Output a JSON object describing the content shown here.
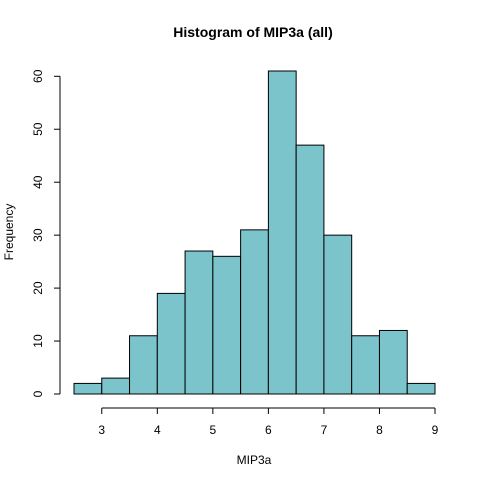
{
  "chart_data": {
    "type": "bar",
    "title": "Histogram of MIP3a (all)",
    "xlabel": "MIP3a",
    "ylabel": "Frequency",
    "bin_edges": [
      2.5,
      3.0,
      3.5,
      4.0,
      4.5,
      5.0,
      5.5,
      6.0,
      6.5,
      7.0,
      7.5,
      8.0,
      8.5,
      9.0
    ],
    "values": [
      2,
      3,
      11,
      19,
      27,
      26,
      31,
      61,
      47,
      30,
      11,
      12,
      2
    ],
    "xlim": [
      2.5,
      9.0
    ],
    "ylim": [
      0,
      61
    ],
    "x_ticks": [
      "3",
      "4",
      "5",
      "6",
      "7",
      "8",
      "9"
    ],
    "y_ticks": [
      "0",
      "10",
      "20",
      "30",
      "40",
      "50",
      "60"
    ],
    "bar_color": "#7bc4cc",
    "bar_edge_color": "#000000",
    "grid": false,
    "legend": "none"
  }
}
